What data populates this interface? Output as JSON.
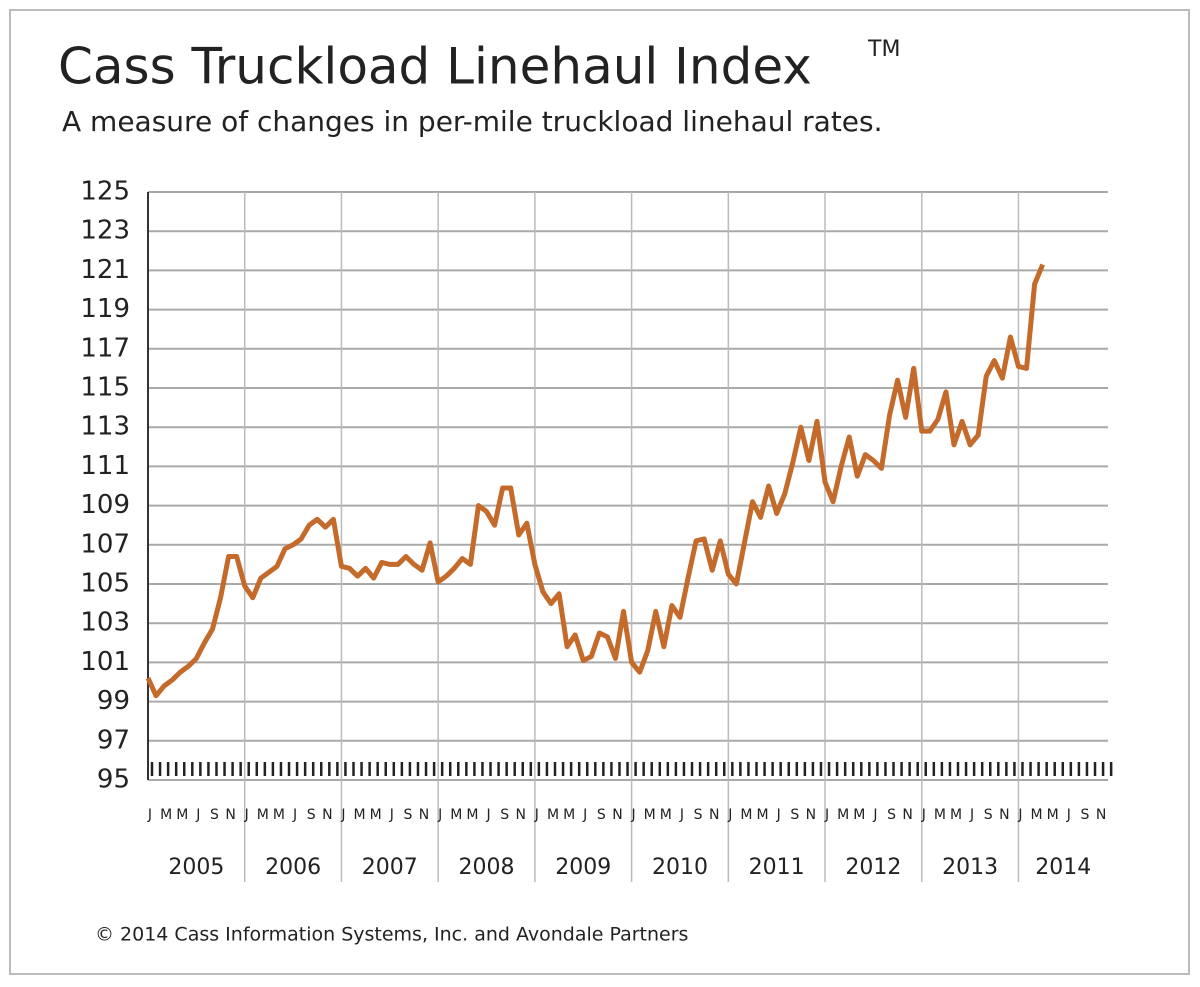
{
  "chart_data": {
    "type": "line",
    "title": "Cass Truckload Linehaul Index",
    "title_mark": "TM",
    "subtitle": "A measure of changes in per-mile truckload linehaul rates.",
    "source": "© 2014 Cass Information Systems, Inc. and Avondale Partners",
    "categories": [
      "J",
      null,
      "M",
      null,
      "M",
      null,
      "J",
      null,
      "S",
      null,
      "N",
      null,
      "J",
      null,
      "M",
      null,
      "M",
      null,
      "J",
      null,
      "S",
      null,
      "N",
      null,
      "J",
      null,
      "M",
      null,
      "M",
      null,
      "J",
      null,
      "S",
      null,
      "N",
      null,
      "J",
      null,
      "M",
      null,
      "M",
      null,
      "J",
      null,
      "S",
      null,
      "N",
      null,
      "J",
      null,
      "M",
      null,
      "M",
      null,
      "J",
      null,
      "S",
      null,
      "N",
      null,
      "J",
      null,
      "M",
      null,
      "M",
      null,
      "J",
      null,
      "S",
      null,
      "N",
      null,
      "J",
      null,
      "M",
      null,
      "M",
      null,
      "J",
      null,
      "S",
      null,
      "N",
      null,
      "J",
      null,
      "M",
      null,
      "M",
      null,
      "J",
      null,
      "S",
      null,
      "N",
      null,
      "J",
      null,
      "M",
      null,
      "M",
      null,
      "J",
      null,
      "S",
      null,
      "N",
      null,
      "J",
      null,
      "M",
      null,
      "M",
      null,
      "J",
      null,
      "S",
      null,
      "N",
      null
    ],
    "years": [
      "2005",
      "2006",
      "2007",
      "2008",
      "2009",
      "2010",
      "2011",
      "2012",
      "2013",
      "2014"
    ],
    "color": "#c46a2a",
    "values": [
      100.2,
      99.3,
      99.8,
      100.1,
      100.5,
      100.8,
      101.2,
      102.0,
      102.7,
      104.3,
      106.4,
      106.4,
      104.9,
      104.3,
      105.3,
      105.6,
      105.9,
      106.8,
      107.0,
      107.3,
      108.0,
      108.3,
      107.9,
      108.3,
      105.9,
      105.8,
      105.4,
      105.8,
      105.3,
      106.1,
      106.0,
      106.0,
      106.4,
      106.0,
      105.7,
      107.1,
      105.1,
      105.4,
      105.8,
      106.3,
      106.0,
      109.0,
      108.7,
      108.0,
      109.9,
      109.9,
      107.5,
      108.1,
      106.0,
      104.6,
      104.0,
      104.5,
      101.8,
      102.4,
      101.1,
      101.3,
      102.5,
      102.3,
      101.2,
      103.6,
      101.0,
      100.5,
      101.6,
      103.6,
      101.8,
      103.9,
      103.3,
      105.3,
      107.2,
      107.3,
      105.7,
      107.2,
      105.5,
      105.0,
      107.1,
      109.2,
      108.4,
      110.0,
      108.6,
      109.6,
      111.2,
      113.0,
      111.3,
      113.3,
      110.2,
      109.2,
      111.0,
      112.5,
      110.5,
      111.6,
      111.3,
      110.9,
      113.6,
      115.4,
      113.5,
      116.0,
      112.8,
      112.8,
      113.4,
      114.8,
      112.1,
      113.3,
      112.1,
      112.6,
      115.6,
      116.4,
      115.5,
      117.6,
      116.1,
      116.0,
      120.3,
      121.3,
      null,
      null,
      null,
      null,
      null,
      null,
      null,
      null
    ],
    "ylim": [
      95,
      125
    ],
    "yticks": [
      95,
      97,
      99,
      101,
      103,
      105,
      107,
      109,
      111,
      113,
      115,
      117,
      119,
      121,
      123,
      125
    ],
    "grid": true
  }
}
